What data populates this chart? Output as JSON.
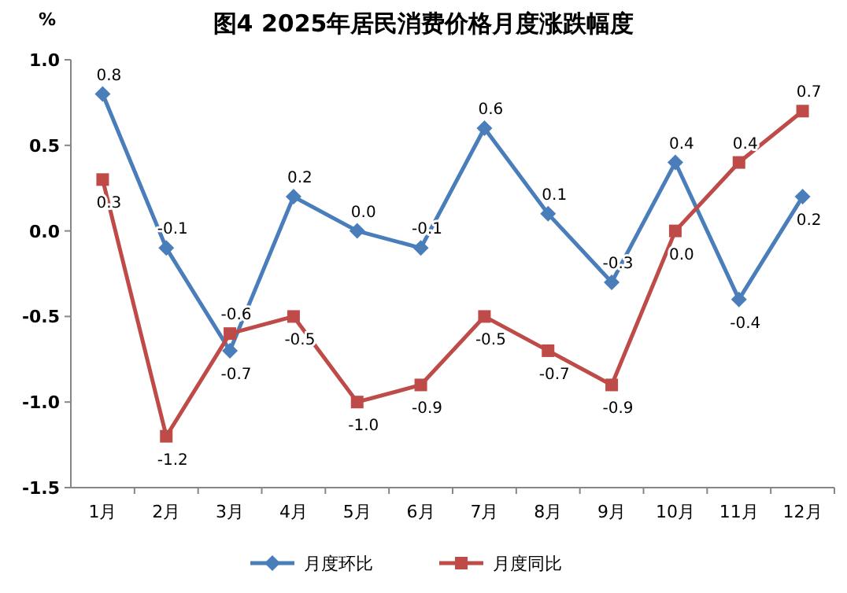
{
  "chart_data": {
    "type": "line",
    "title": "图4  2025年居民消费价格月度涨跌幅度",
    "ylabel": "%",
    "categories": [
      "1月",
      "2月",
      "3月",
      "4月",
      "5月",
      "6月",
      "7月",
      "8月",
      "9月",
      "10月",
      "11月",
      "12月"
    ],
    "series": [
      {
        "name": "月度环比",
        "color": "#4a7ebb",
        "marker": "diamond",
        "values": [
          0.8,
          -0.1,
          -0.7,
          0.2,
          0.0,
          -0.1,
          0.6,
          0.1,
          -0.3,
          0.4,
          -0.4,
          0.2
        ],
        "value_labels": [
          "0.8",
          "-0.1",
          "-0.7",
          "0.2",
          "0.0",
          "-0.1",
          "0.6",
          "0.1",
          "-0.3",
          "0.4",
          "-0.4",
          "0.2"
        ]
      },
      {
        "name": "月度同比",
        "color": "#be4b48",
        "marker": "square",
        "values": [
          0.3,
          -1.2,
          -0.6,
          -0.5,
          -1.0,
          -0.9,
          -0.5,
          -0.7,
          -0.9,
          0.0,
          0.4,
          0.7
        ],
        "value_labels": [
          "0.3",
          "-1.2",
          "-0.6",
          "-0.5",
          "-1.0",
          "-0.9",
          "-0.5",
          "-0.7",
          "-0.9",
          "0.0",
          "0.4",
          "0.7"
        ]
      }
    ],
    "ylim": [
      -1.5,
      1.0
    ],
    "yticks": [
      {
        "value": -1.5,
        "label": "-1.5"
      },
      {
        "value": -1.0,
        "label": "-1.0"
      },
      {
        "value": -0.5,
        "label": "-0.5"
      },
      {
        "value": 0,
        "label": "0.0"
      },
      {
        "value": 0.5,
        "label": "0.5"
      },
      {
        "value": 1.0,
        "label": "1.0"
      }
    ],
    "grid": false,
    "legend": "bottom",
    "line_style": "solid"
  }
}
